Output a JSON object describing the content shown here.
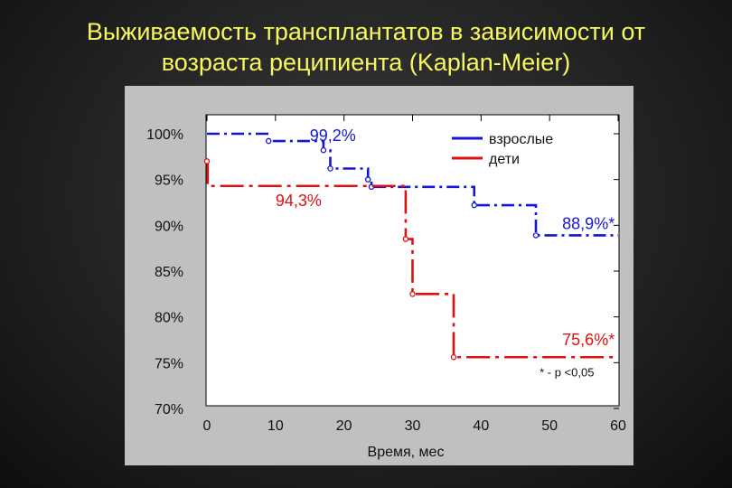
{
  "slide": {
    "title_line1": "Выживаемость трансплантатов в зависимости от",
    "title_line2": "возраста реципиента (Kaplan-Meier)"
  },
  "colors": {
    "adults": "#1515d6",
    "children": "#e01010",
    "panel": "#c0c0c0",
    "plot": "#ffffff",
    "title": "#f7f760"
  },
  "chart_data": {
    "type": "line",
    "subtype": "kaplan-meier step curves",
    "xlabel": "Время, мес",
    "ylabel": "",
    "xlim": [
      0,
      60
    ],
    "ylim": [
      70,
      100
    ],
    "x_ticks": [
      0,
      10,
      20,
      30,
      40,
      50,
      60
    ],
    "x_tick_labels": [
      "0",
      "10",
      "20",
      "30",
      "40",
      "50",
      "60"
    ],
    "y_ticks": [
      100,
      95,
      90,
      85,
      80,
      75,
      70
    ],
    "y_tick_labels": [
      "100%",
      "95%",
      "90%",
      "85%",
      "80%",
      "75%",
      "70%"
    ],
    "legend_position": "top-right",
    "series": [
      {
        "name": "взрослые",
        "color": "#1515d6",
        "steps": [
          [
            0,
            100
          ],
          [
            9,
            99.2
          ],
          [
            17,
            98.2
          ],
          [
            18,
            96.2
          ],
          [
            23.5,
            95
          ],
          [
            24,
            94.2
          ],
          [
            39,
            92.2
          ],
          [
            48,
            88.9
          ],
          [
            60,
            88.9
          ]
        ],
        "censored_x": [
          9,
          17,
          18,
          23.5,
          24,
          39,
          48
        ]
      },
      {
        "name": "дети",
        "color": "#e01010",
        "steps": [
          [
            0,
            97
          ],
          [
            0.1,
            94.3
          ],
          [
            29,
            88.5
          ],
          [
            30,
            82.5
          ],
          [
            36,
            75.6
          ],
          [
            60,
            75.6
          ]
        ],
        "censored_x": [
          0,
          29,
          30,
          36
        ]
      }
    ],
    "annotations": [
      {
        "text": "99,2%",
        "series": "взрослые",
        "x": 15,
        "y": 99.2,
        "anchor": "start"
      },
      {
        "text": "94,3%",
        "series": "дети",
        "x": 10,
        "y": 92.1,
        "anchor": "start"
      },
      {
        "text": "88,9%*",
        "series": "взрослые",
        "x": 59.5,
        "y": 89.6,
        "anchor": "end"
      },
      {
        "text": "75,6%*",
        "series": "дети",
        "x": 59.5,
        "y": 76.9,
        "anchor": "end"
      },
      {
        "text": "* - p <0,05",
        "series": null,
        "x": 56.5,
        "y": 73.5,
        "anchor": "end"
      }
    ]
  }
}
